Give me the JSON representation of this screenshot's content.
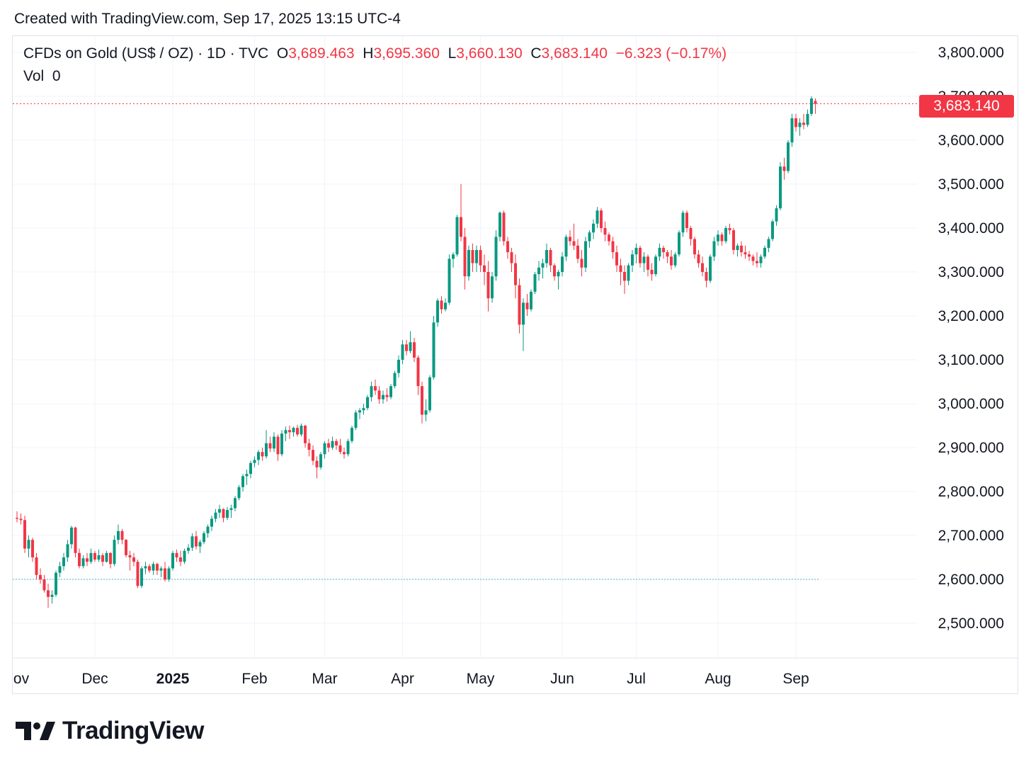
{
  "header": {
    "created": "Created with TradingView.com, Sep 17, 2025 13:15 UTC-4"
  },
  "legend": {
    "symbol": "CFDs on Gold (US$ / OZ) · 1D · TVC",
    "open_label": "O",
    "open": "3,689.463",
    "high_label": "H",
    "high": "3,695.360",
    "low_label": "L",
    "low": "3,660.130",
    "close_label": "C",
    "close": "3,683.140",
    "change": "−6.323 (−0.17%)",
    "vol_label": "Vol",
    "vol": "0"
  },
  "last_price_tag": "3,683.140",
  "brand": {
    "name": "TradingView"
  },
  "colors": {
    "up": "#089981",
    "down": "#f23645",
    "grid": "#f0f3fa",
    "text": "#131722",
    "base_line": "#56b6c2"
  },
  "chart_data": {
    "type": "candlestick",
    "title": "CFDs on Gold (US$ / OZ) · 1D · TVC",
    "y_ticks": [
      "2,500.000",
      "2,600.000",
      "2,700.000",
      "2,800.000",
      "2,900.000",
      "3,000.000",
      "3,100.000",
      "3,200.000",
      "3,300.000",
      "3,400.000",
      "3,500.000",
      "3,600.000",
      "3,700.000",
      "3,800.000"
    ],
    "y_values": [
      2500,
      2600,
      2700,
      2800,
      2900,
      3000,
      3100,
      3200,
      3300,
      3400,
      3500,
      3600,
      3700,
      3800
    ],
    "ylim": [
      2420,
      3840
    ],
    "x_ticks": [
      {
        "label": "ov",
        "day": 0,
        "bold": false
      },
      {
        "label": "Dec",
        "day": 20,
        "bold": false
      },
      {
        "label": "2025",
        "day": 40,
        "bold": true
      },
      {
        "label": "Feb",
        "day": 61,
        "bold": false
      },
      {
        "label": "Mar",
        "day": 79,
        "bold": false
      },
      {
        "label": "Apr",
        "day": 99,
        "bold": false
      },
      {
        "label": "May",
        "day": 119,
        "bold": false
      },
      {
        "label": "Jun",
        "day": 140,
        "bold": false
      },
      {
        "label": "Jul",
        "day": 159,
        "bold": false
      },
      {
        "label": "Aug",
        "day": 180,
        "bold": false
      },
      {
        "label": "Sep",
        "day": 200,
        "bold": false
      }
    ],
    "x_range": [
      0,
      222
    ],
    "last_close": 3683.14,
    "base_line": 2600,
    "ohlc": [
      [
        2740,
        2755,
        2730,
        2738
      ],
      [
        2738,
        2750,
        2725,
        2735
      ],
      [
        2735,
        2745,
        2660,
        2670
      ],
      [
        2670,
        2700,
        2650,
        2690
      ],
      [
        2690,
        2695,
        2640,
        2650
      ],
      [
        2650,
        2660,
        2600,
        2610
      ],
      [
        2610,
        2625,
        2590,
        2600
      ],
      [
        2600,
        2610,
        2570,
        2575
      ],
      [
        2575,
        2590,
        2535,
        2560
      ],
      [
        2560,
        2575,
        2545,
        2565
      ],
      [
        2565,
        2620,
        2560,
        2615
      ],
      [
        2615,
        2640,
        2605,
        2630
      ],
      [
        2630,
        2660,
        2620,
        2650
      ],
      [
        2650,
        2690,
        2640,
        2680
      ],
      [
        2680,
        2722,
        2670,
        2718
      ],
      [
        2718,
        2720,
        2650,
        2660
      ],
      [
        2660,
        2670,
        2625,
        2630
      ],
      [
        2630,
        2655,
        2625,
        2648
      ],
      [
        2648,
        2660,
        2630,
        2640
      ],
      [
        2640,
        2670,
        2635,
        2660
      ],
      [
        2660,
        2665,
        2640,
        2645
      ],
      [
        2645,
        2668,
        2640,
        2655
      ],
      [
        2655,
        2660,
        2630,
        2640
      ],
      [
        2640,
        2665,
        2638,
        2660
      ],
      [
        2660,
        2662,
        2625,
        2635
      ],
      [
        2635,
        2700,
        2630,
        2690
      ],
      [
        2690,
        2725,
        2680,
        2710
      ],
      [
        2710,
        2715,
        2680,
        2690
      ],
      [
        2690,
        2692,
        2650,
        2655
      ],
      [
        2655,
        2665,
        2620,
        2650
      ],
      [
        2650,
        2660,
        2630,
        2640
      ],
      [
        2640,
        2645,
        2580,
        2585
      ],
      [
        2585,
        2630,
        2580,
        2625
      ],
      [
        2625,
        2640,
        2612,
        2630
      ],
      [
        2630,
        2635,
        2615,
        2620
      ],
      [
        2620,
        2640,
        2610,
        2635
      ],
      [
        2635,
        2638,
        2610,
        2620
      ],
      [
        2620,
        2630,
        2605,
        2625
      ],
      [
        2625,
        2640,
        2595,
        2600
      ],
      [
        2600,
        2630,
        2595,
        2625
      ],
      [
        2625,
        2665,
        2620,
        2660
      ],
      [
        2660,
        2668,
        2640,
        2650
      ],
      [
        2650,
        2665,
        2630,
        2640
      ],
      [
        2640,
        2670,
        2635,
        2665
      ],
      [
        2665,
        2680,
        2658,
        2672
      ],
      [
        2672,
        2705,
        2665,
        2698
      ],
      [
        2698,
        2710,
        2668,
        2675
      ],
      [
        2675,
        2690,
        2660,
        2685
      ],
      [
        2685,
        2710,
        2680,
        2705
      ],
      [
        2705,
        2725,
        2695,
        2720
      ],
      [
        2720,
        2745,
        2710,
        2738
      ],
      [
        2738,
        2760,
        2730,
        2752
      ],
      [
        2752,
        2770,
        2740,
        2760
      ],
      [
        2760,
        2762,
        2730,
        2740
      ],
      [
        2740,
        2765,
        2735,
        2758
      ],
      [
        2758,
        2770,
        2740,
        2762
      ],
      [
        2762,
        2790,
        2755,
        2785
      ],
      [
        2785,
        2815,
        2780,
        2810
      ],
      [
        2810,
        2840,
        2800,
        2835
      ],
      [
        2835,
        2850,
        2815,
        2840
      ],
      [
        2840,
        2870,
        2830,
        2865
      ],
      [
        2865,
        2880,
        2855,
        2872
      ],
      [
        2872,
        2895,
        2860,
        2890
      ],
      [
        2890,
        2900,
        2870,
        2880
      ],
      [
        2880,
        2940,
        2875,
        2910
      ],
      [
        2910,
        2925,
        2890,
        2898
      ],
      [
        2898,
        2935,
        2890,
        2925
      ],
      [
        2925,
        2930,
        2870,
        2885
      ],
      [
        2885,
        2940,
        2880,
        2932
      ],
      [
        2932,
        2948,
        2915,
        2940
      ],
      [
        2940,
        2950,
        2920,
        2935
      ],
      [
        2935,
        2948,
        2925,
        2945
      ],
      [
        2945,
        2952,
        2925,
        2930
      ],
      [
        2930,
        2955,
        2925,
        2950
      ],
      [
        2950,
        2952,
        2900,
        2910
      ],
      [
        2910,
        2920,
        2880,
        2895
      ],
      [
        2895,
        2905,
        2860,
        2870
      ],
      [
        2870,
        2880,
        2830,
        2855
      ],
      [
        2855,
        2890,
        2850,
        2885
      ],
      [
        2885,
        2915,
        2875,
        2910
      ],
      [
        2910,
        2920,
        2890,
        2900
      ],
      [
        2900,
        2925,
        2895,
        2915
      ],
      [
        2915,
        2920,
        2895,
        2905
      ],
      [
        2905,
        2920,
        2885,
        2890
      ],
      [
        2890,
        2900,
        2875,
        2885
      ],
      [
        2885,
        2920,
        2880,
        2915
      ],
      [
        2915,
        2950,
        2910,
        2945
      ],
      [
        2945,
        2985,
        2940,
        2980
      ],
      [
        2980,
        2990,
        2965,
        2985
      ],
      [
        2985,
        3000,
        2975,
        2990
      ],
      [
        2990,
        3020,
        2985,
        3015
      ],
      [
        3015,
        3050,
        3005,
        3040
      ],
      [
        3040,
        3055,
        3020,
        3030
      ],
      [
        3030,
        3040,
        3000,
        3010
      ],
      [
        3010,
        3030,
        3000,
        3020
      ],
      [
        3020,
        3035,
        3005,
        3015
      ],
      [
        3015,
        3045,
        3010,
        3040
      ],
      [
        3040,
        3075,
        3035,
        3070
      ],
      [
        3070,
        3110,
        3060,
        3100
      ],
      [
        3100,
        3145,
        3090,
        3135
      ],
      [
        3135,
        3145,
        3110,
        3120
      ],
      [
        3120,
        3165,
        3115,
        3140
      ],
      [
        3140,
        3150,
        3095,
        3105
      ],
      [
        3105,
        3110,
        3020,
        3040
      ],
      [
        3040,
        3050,
        2955,
        2975
      ],
      [
        2975,
        3010,
        2960,
        2985
      ],
      [
        2985,
        3065,
        2980,
        3060
      ],
      [
        3060,
        3200,
        3055,
        3185
      ],
      [
        3185,
        3240,
        3175,
        3235
      ],
      [
        3235,
        3245,
        3205,
        3215
      ],
      [
        3215,
        3240,
        3210,
        3230
      ],
      [
        3230,
        3340,
        3225,
        3330
      ],
      [
        3330,
        3345,
        3310,
        3340
      ],
      [
        3340,
        3430,
        3335,
        3425
      ],
      [
        3425,
        3500,
        3370,
        3380
      ],
      [
        3380,
        3400,
        3260,
        3290
      ],
      [
        3290,
        3360,
        3280,
        3350
      ],
      [
        3350,
        3365,
        3300,
        3320
      ],
      [
        3320,
        3360,
        3300,
        3350
      ],
      [
        3350,
        3360,
        3300,
        3315
      ],
      [
        3315,
        3340,
        3270,
        3300
      ],
      [
        3300,
        3325,
        3210,
        3240
      ],
      [
        3240,
        3300,
        3230,
        3290
      ],
      [
        3290,
        3395,
        3280,
        3380
      ],
      [
        3380,
        3438,
        3370,
        3435
      ],
      [
        3435,
        3440,
        3360,
        3370
      ],
      [
        3370,
        3380,
        3330,
        3345
      ],
      [
        3345,
        3355,
        3300,
        3320
      ],
      [
        3320,
        3340,
        3240,
        3270
      ],
      [
        3270,
        3285,
        3160,
        3180
      ],
      [
        3180,
        3240,
        3120,
        3230
      ],
      [
        3230,
        3250,
        3200,
        3215
      ],
      [
        3215,
        3260,
        3210,
        3255
      ],
      [
        3255,
        3300,
        3250,
        3295
      ],
      [
        3295,
        3325,
        3280,
        3310
      ],
      [
        3310,
        3330,
        3285,
        3320
      ],
      [
        3320,
        3365,
        3310,
        3350
      ],
      [
        3350,
        3355,
        3300,
        3315
      ],
      [
        3315,
        3320,
        3280,
        3290
      ],
      [
        3290,
        3305,
        3260,
        3300
      ],
      [
        3300,
        3345,
        3290,
        3335
      ],
      [
        3335,
        3385,
        3325,
        3380
      ],
      [
        3380,
        3395,
        3360,
        3370
      ],
      [
        3370,
        3410,
        3350,
        3360
      ],
      [
        3360,
        3375,
        3320,
        3330
      ],
      [
        3330,
        3350,
        3290,
        3310
      ],
      [
        3310,
        3380,
        3300,
        3370
      ],
      [
        3370,
        3395,
        3355,
        3390
      ],
      [
        3390,
        3420,
        3375,
        3410
      ],
      [
        3410,
        3448,
        3400,
        3440
      ],
      [
        3440,
        3445,
        3390,
        3400
      ],
      [
        3400,
        3415,
        3370,
        3385
      ],
      [
        3385,
        3390,
        3360,
        3370
      ],
      [
        3370,
        3380,
        3330,
        3345
      ],
      [
        3345,
        3360,
        3300,
        3315
      ],
      [
        3315,
        3330,
        3270,
        3300
      ],
      [
        3300,
        3315,
        3250,
        3280
      ],
      [
        3280,
        3320,
        3270,
        3315
      ],
      [
        3315,
        3350,
        3300,
        3340
      ],
      [
        3340,
        3365,
        3320,
        3355
      ],
      [
        3355,
        3360,
        3310,
        3320
      ],
      [
        3320,
        3345,
        3300,
        3335
      ],
      [
        3335,
        3340,
        3290,
        3305
      ],
      [
        3305,
        3320,
        3280,
        3295
      ],
      [
        3295,
        3340,
        3290,
        3335
      ],
      [
        3335,
        3365,
        3325,
        3355
      ],
      [
        3355,
        3360,
        3330,
        3345
      ],
      [
        3345,
        3350,
        3320,
        3335
      ],
      [
        3335,
        3350,
        3305,
        3315
      ],
      [
        3315,
        3345,
        3310,
        3340
      ],
      [
        3340,
        3395,
        3335,
        3390
      ],
      [
        3390,
        3440,
        3380,
        3435
      ],
      [
        3435,
        3440,
        3390,
        3400
      ],
      [
        3400,
        3405,
        3360,
        3375
      ],
      [
        3375,
        3380,
        3330,
        3340
      ],
      [
        3340,
        3350,
        3310,
        3320
      ],
      [
        3320,
        3335,
        3290,
        3300
      ],
      [
        3300,
        3310,
        3265,
        3280
      ],
      [
        3280,
        3340,
        3275,
        3335
      ],
      [
        3335,
        3380,
        3325,
        3370
      ],
      [
        3370,
        3395,
        3360,
        3385
      ],
      [
        3385,
        3390,
        3360,
        3370
      ],
      [
        3370,
        3405,
        3365,
        3400
      ],
      [
        3400,
        3410,
        3385,
        3395
      ],
      [
        3395,
        3400,
        3340,
        3350
      ],
      [
        3350,
        3365,
        3335,
        3360
      ],
      [
        3360,
        3370,
        3335,
        3345
      ],
      [
        3345,
        3360,
        3330,
        3340
      ],
      [
        3340,
        3348,
        3325,
        3335
      ],
      [
        3335,
        3340,
        3315,
        3325
      ],
      [
        3325,
        3345,
        3310,
        3320
      ],
      [
        3320,
        3340,
        3310,
        3335
      ],
      [
        3335,
        3360,
        3330,
        3355
      ],
      [
        3355,
        3380,
        3345,
        3375
      ],
      [
        3375,
        3420,
        3370,
        3415
      ],
      [
        3415,
        3452,
        3405,
        3445
      ],
      [
        3445,
        3550,
        3440,
        3540
      ],
      [
        3540,
        3560,
        3510,
        3530
      ],
      [
        3530,
        3600,
        3525,
        3595
      ],
      [
        3595,
        3660,
        3585,
        3650
      ],
      [
        3650,
        3660,
        3620,
        3630
      ],
      [
        3630,
        3650,
        3610,
        3640
      ],
      [
        3640,
        3660,
        3625,
        3635
      ],
      [
        3635,
        3670,
        3630,
        3660
      ],
      [
        3660,
        3700,
        3655,
        3695
      ],
      [
        3689.463,
        3695.36,
        3660.13,
        3683.14
      ]
    ]
  }
}
